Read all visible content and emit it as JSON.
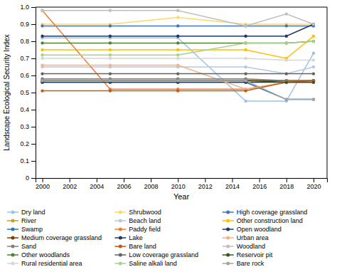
{
  "chart_data": {
    "type": "line",
    "xlabel": "Year",
    "ylabel": "Landscape Ecological Security Index",
    "x": [
      2000,
      2005,
      2010,
      2015,
      2018,
      2020
    ],
    "xlim": [
      1999.5,
      2021
    ],
    "xticks": [
      2000,
      2002,
      2004,
      2006,
      2008,
      2010,
      2012,
      2014,
      2016,
      2018,
      2020
    ],
    "ylim": [
      0,
      1.0
    ],
    "yticks": [
      0,
      0.1,
      0.2,
      0.3,
      0.4,
      0.5,
      0.6,
      0.7,
      0.8,
      0.9,
      {
        "value": 1.0,
        "label": "1.0"
      }
    ],
    "grid": false,
    "legend": "bottom",
    "marker": "circle",
    "series": [
      {
        "name": "Dry land",
        "color": "#9dc3e6",
        "values": [
          0.82,
          0.82,
          0.82,
          0.45,
          0.45,
          0.73
        ]
      },
      {
        "name": "Shrubwood",
        "color": "#ffd966",
        "values": [
          0.9,
          0.9,
          0.94,
          0.9,
          0.9,
          0.9
        ]
      },
      {
        "name": "High coverage grassland",
        "color": "#4472c4",
        "values": [
          0.89,
          0.89,
          0.89,
          0.89,
          0.89,
          0.89
        ]
      },
      {
        "name": "River",
        "color": "#c9a227",
        "values": [
          0.57,
          0.57,
          0.57,
          0.57,
          0.57,
          0.57
        ]
      },
      {
        "name": "Beach land",
        "color": "#b4c7e7",
        "values": [
          0.65,
          0.65,
          0.65,
          0.65,
          0.61,
          0.65
        ]
      },
      {
        "name": "Other construction land",
        "color": "#ffc000",
        "values": [
          0.75,
          0.75,
          0.75,
          0.75,
          0.7,
          0.83
        ]
      },
      {
        "name": "Swamp",
        "color": "#2e75b6",
        "values": [
          0.56,
          0.56,
          0.56,
          0.56,
          0.46,
          0.46
        ]
      },
      {
        "name": "Paddy field",
        "color": "#ed7d31",
        "values": [
          0.98,
          0.52,
          0.52,
          0.52,
          0.56,
          0.57
        ]
      },
      {
        "name": "Open woodland",
        "color": "#203864",
        "values": [
          0.83,
          0.83,
          0.83,
          0.83,
          0.83,
          0.9
        ]
      },
      {
        "name": "Medium coverage grassland",
        "color": "#833c00",
        "values": [
          0.57,
          0.57,
          0.57,
          0.57,
          0.57,
          0.57
        ]
      },
      {
        "name": "Lake",
        "color": "#1f3864",
        "values": [
          0.56,
          0.56,
          0.56,
          0.56,
          0.56,
          0.56
        ]
      },
      {
        "name": "Urban area",
        "color": "#f4b183",
        "values": [
          0.66,
          0.66,
          0.66,
          0.52,
          0.56,
          0.56
        ]
      },
      {
        "name": "Sand",
        "color": "#808080",
        "values": [
          0.58,
          0.58,
          0.58,
          0.58,
          0.57,
          0.57
        ]
      },
      {
        "name": "Bare land",
        "color": "#c55a11",
        "values": [
          0.51,
          0.51,
          0.51,
          0.51,
          0.56,
          0.57
        ]
      },
      {
        "name": "Woodland",
        "color": "#bfbfbf",
        "values": [
          0.98,
          0.98,
          0.98,
          0.89,
          0.96,
          0.9
        ]
      },
      {
        "name": "Other woodlands",
        "color": "#548235",
        "values": [
          0.79,
          0.79,
          0.79,
          0.79,
          0.79,
          0.8
        ]
      },
      {
        "name": "Low coverage grassland",
        "color": "#636363",
        "values": [
          0.61,
          0.61,
          0.61,
          0.61,
          0.61,
          0.61
        ]
      },
      {
        "name": "Reservoir pit",
        "color": "#375623",
        "values": [
          0.57,
          0.57,
          0.57,
          0.57,
          0.56,
          0.56
        ]
      },
      {
        "name": "Rural residential area",
        "color": "#d6d6d6",
        "values": [
          0.7,
          0.7,
          0.7,
          0.7,
          0.69,
          0.69
        ]
      },
      {
        "name": "Saline alkali land",
        "color": "#a9d18e",
        "values": [
          0.72,
          0.72,
          0.72,
          0.79,
          0.79,
          0.8
        ]
      },
      {
        "name": "Bare rock",
        "color": "#a5a5a5",
        "values": [
          0.57,
          0.57,
          0.57,
          0.57,
          0.46,
          0.46
        ]
      }
    ]
  }
}
